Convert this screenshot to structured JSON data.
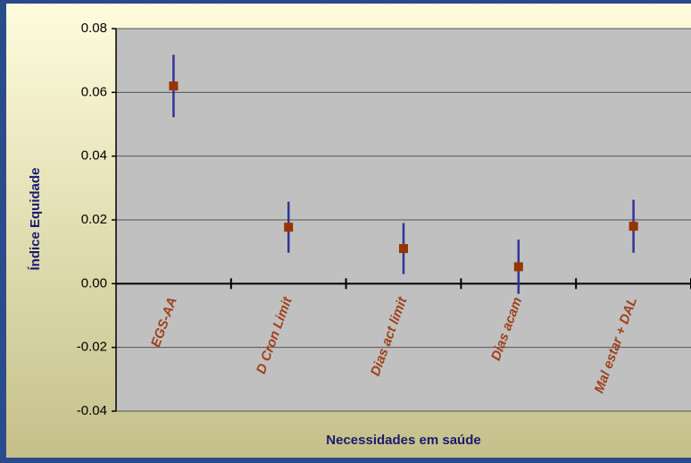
{
  "chart_data": {
    "type": "errorbar",
    "x_label": "Necessidades em saúde",
    "y_label": "Índice Equidade",
    "categories": [
      "EGS-AA",
      "D Cron Limit",
      "Dias act limit",
      "Dias acam",
      "Mal estar + DAL"
    ],
    "series": [
      {
        "color": "#993300",
        "error_color": "#333399",
        "values": [
          0.062,
          0.0177,
          0.011,
          0.0053,
          0.018
        ],
        "errors": [
          0.0098,
          0.008,
          0.008,
          0.0085,
          0.0083
        ]
      }
    ],
    "ylim": [
      -0.04,
      0.08
    ],
    "yticks": [
      -0.04,
      -0.02,
      {
        "value": 0,
        "label": "0.00"
      },
      0.02,
      0.04,
      0.06,
      0.08
    ],
    "grid": true
  }
}
